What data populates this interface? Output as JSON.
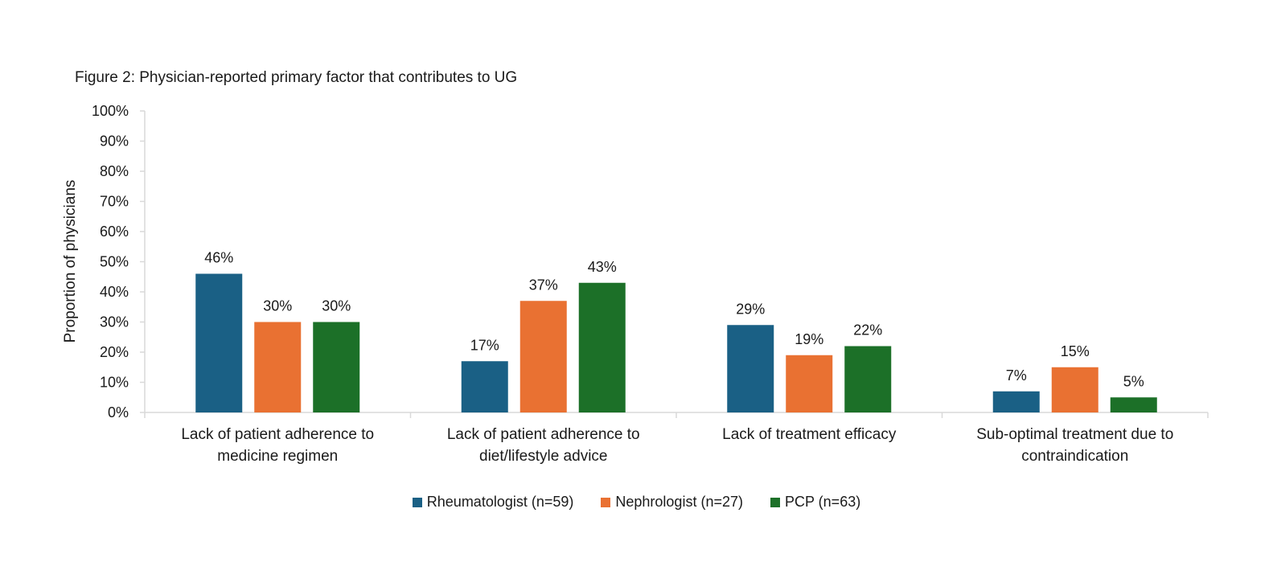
{
  "chart_data": {
    "type": "bar",
    "title": "Figure 2: Physician-reported primary factor that contributes to UG",
    "xlabel": "",
    "ylabel": "Proportion of physicians",
    "ylim": [
      0,
      100
    ],
    "yticks": [
      "0%",
      "10%",
      "20%",
      "30%",
      "40%",
      "50%",
      "60%",
      "70%",
      "80%",
      "90%",
      "100%"
    ],
    "grid": false,
    "legend_position": "bottom",
    "categories": [
      [
        "Lack of patient adherence to",
        "medicine regimen"
      ],
      [
        "Lack of patient adherence to",
        "diet/lifestyle advice"
      ],
      [
        "Lack of treatment efficacy"
      ],
      [
        "Sub-optimal treatment due to",
        "contraindication"
      ]
    ],
    "series": [
      {
        "name": "Rheumatologist (n=59)",
        "color": "#1a6085",
        "values": [
          46,
          17,
          29,
          7
        ]
      },
      {
        "name": "Nephrologist (n=27)",
        "color": "#e97132",
        "values": [
          30,
          37,
          19,
          15
        ]
      },
      {
        "name": "PCP (n=63)",
        "color": "#1c7028",
        "values": [
          30,
          43,
          22,
          5
        ]
      }
    ],
    "value_suffix": "%"
  }
}
